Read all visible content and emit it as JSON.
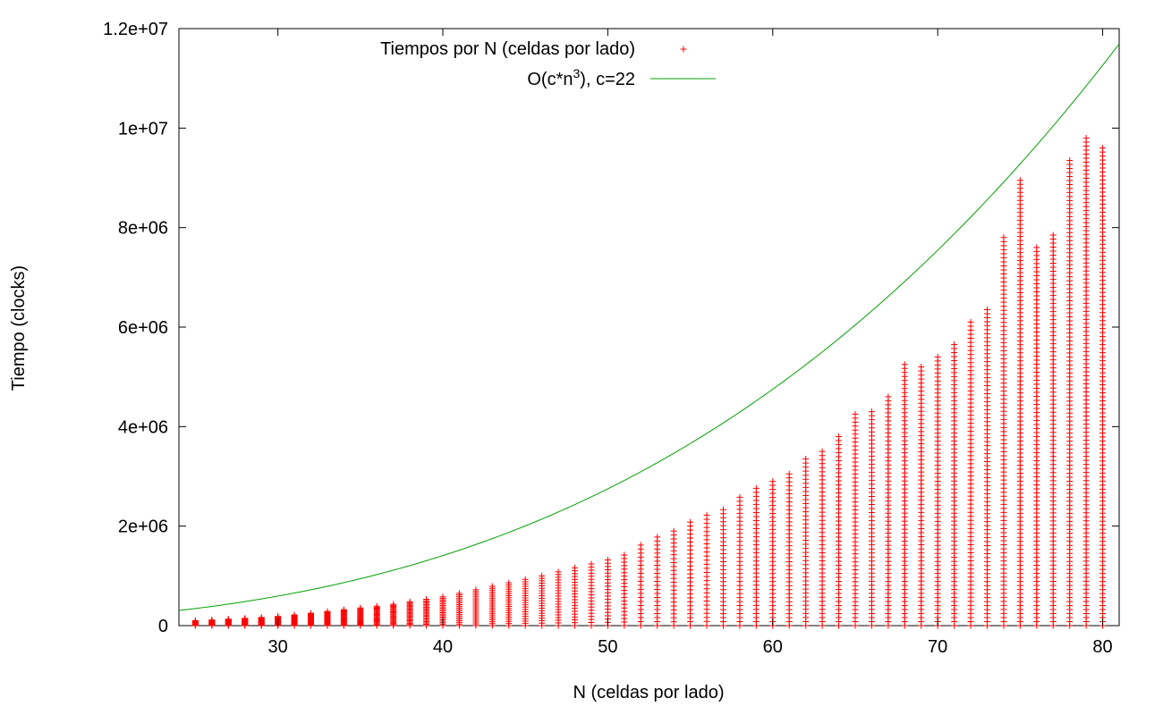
{
  "chart_data": {
    "type": "scatter",
    "xlabel": "N (celdas por lado)",
    "ylabel": "Tiempo (clocks)",
    "xlim": [
      24,
      81
    ],
    "ylim": [
      0,
      12000000
    ],
    "x_ticks": [
      30,
      40,
      50,
      60,
      70,
      80
    ],
    "y_ticks": [
      0,
      2000000,
      4000000,
      6000000,
      8000000,
      10000000,
      12000000
    ],
    "x_tick_labels": [
      "30",
      "40",
      "50",
      "60",
      "70",
      "80"
    ],
    "y_tick_labels": [
      "0",
      "2e+06",
      "4e+06",
      "6e+06",
      "8e+06",
      "1e+07",
      "1.2e+07"
    ],
    "grid": false,
    "legend_position": "top",
    "series": [
      {
        "name": "Tiempos por N (celdas por lado)",
        "kind": "scatter",
        "marker": "+",
        "color": "#ff0000",
        "x_range": [
          25,
          80
        ],
        "min_value": 0,
        "max_by_n": [
          [
            25,
            100000
          ],
          [
            26,
            115000
          ],
          [
            27,
            130000
          ],
          [
            28,
            145000
          ],
          [
            29,
            165000
          ],
          [
            30,
            185000
          ],
          [
            31,
            215000
          ],
          [
            32,
            250000
          ],
          [
            33,
            285000
          ],
          [
            34,
            320000
          ],
          [
            35,
            355000
          ],
          [
            36,
            390000
          ],
          [
            37,
            430000
          ],
          [
            38,
            480000
          ],
          [
            39,
            530000
          ],
          [
            40,
            580000
          ],
          [
            41,
            650000
          ],
          [
            42,
            720000
          ],
          [
            43,
            790000
          ],
          [
            44,
            860000
          ],
          [
            45,
            930000
          ],
          [
            46,
            1000000
          ],
          [
            47,
            1080000
          ],
          [
            48,
            1160000
          ],
          [
            49,
            1240000
          ],
          [
            50,
            1320000
          ],
          [
            51,
            1420000
          ],
          [
            52,
            1620000
          ],
          [
            53,
            1780000
          ],
          [
            54,
            1900000
          ],
          [
            55,
            2080000
          ],
          [
            56,
            2220000
          ],
          [
            57,
            2330000
          ],
          [
            58,
            2580000
          ],
          [
            59,
            2760000
          ],
          [
            60,
            2900000
          ],
          [
            61,
            3050000
          ],
          [
            62,
            3350000
          ],
          [
            63,
            3500000
          ],
          [
            64,
            3800000
          ],
          [
            65,
            4250000
          ],
          [
            66,
            4300000
          ],
          [
            67,
            4600000
          ],
          [
            68,
            5250000
          ],
          [
            69,
            5200000
          ],
          [
            70,
            5400000
          ],
          [
            71,
            5650000
          ],
          [
            72,
            6100000
          ],
          [
            73,
            6350000
          ],
          [
            74,
            7800000
          ],
          [
            75,
            8950000
          ],
          [
            76,
            7600000
          ],
          [
            77,
            7850000
          ],
          [
            78,
            9350000
          ],
          [
            79,
            9800000
          ],
          [
            80,
            9600000
          ]
        ]
      },
      {
        "name_parts": [
          "O(c*n",
          "3",
          "), c=22"
        ],
        "kind": "line",
        "color": "#00a000",
        "coefficient": 22,
        "exponent": 3
      }
    ]
  }
}
